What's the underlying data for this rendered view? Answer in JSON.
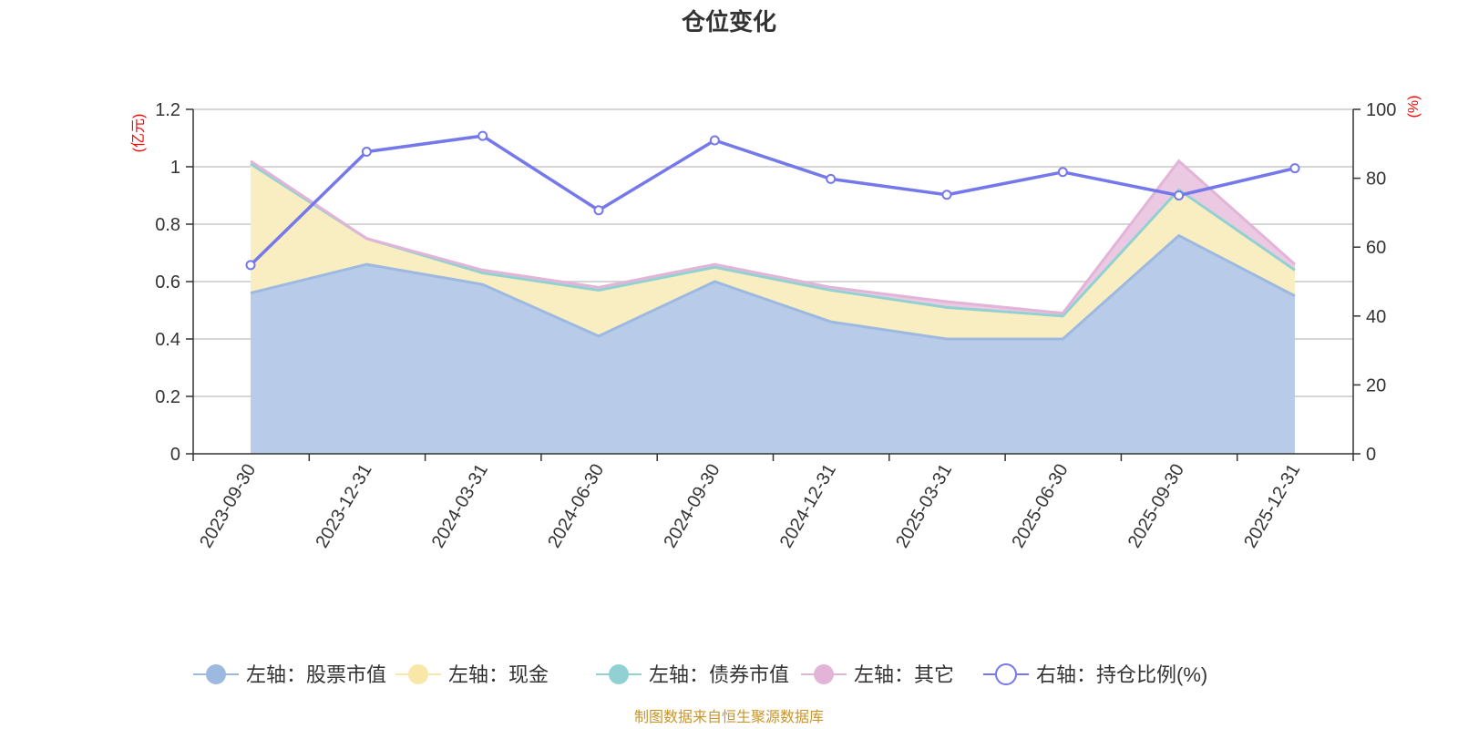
{
  "chart_data": {
    "type": "area",
    "title": "仓位变化",
    "categories": [
      "2023-09-30",
      "2023-12-31",
      "2024-03-31",
      "2024-06-30",
      "2024-09-30",
      "2024-12-31",
      "2025-03-31",
      "2025-06-30",
      "2025-09-30",
      "2025-12-31"
    ],
    "left_axis": {
      "unit": "(亿元)",
      "ylim": [
        0,
        1.2
      ],
      "ticks": [
        "0",
        "0.2",
        "0.4",
        "0.6",
        "0.8",
        "1",
        "1.2"
      ],
      "tick_values": [
        0,
        0.2,
        0.4,
        0.6,
        0.8,
        1.0,
        1.2
      ]
    },
    "right_axis": {
      "unit": "(%)",
      "ylim": [
        0,
        100
      ],
      "ticks": [
        "0",
        "20",
        "40",
        "60",
        "80",
        "100"
      ],
      "tick_values": [
        0,
        20,
        40,
        60,
        80,
        100
      ]
    },
    "series": [
      {
        "name": "左轴：股票市值",
        "axis": "left",
        "kind": "stacked-area",
        "color": "#9db9e0",
        "fill": "#b8cce9",
        "values": [
          0.56,
          0.66,
          0.59,
          0.41,
          0.6,
          0.46,
          0.4,
          0.4,
          0.76,
          0.55
        ]
      },
      {
        "name": "左轴：现金",
        "axis": "left",
        "kind": "stacked-area",
        "color": "#f8e7a6",
        "fill": "#f9edc2",
        "values": [
          0.45,
          0.09,
          0.04,
          0.16,
          0.05,
          0.11,
          0.11,
          0.08,
          0.16,
          0.09
        ]
      },
      {
        "name": "左轴：债券市值",
        "axis": "left",
        "kind": "stacked-area",
        "color": "#91d1d3",
        "fill": "#b6e2e3",
        "values": [
          0,
          0,
          0,
          0,
          0,
          0,
          0,
          0,
          0,
          0
        ]
      },
      {
        "name": "左轴：其它",
        "axis": "left",
        "kind": "stacked-area",
        "color": "#e2b4d8",
        "fill": "#ebc9e3",
        "values": [
          0.01,
          0.0,
          0.01,
          0.01,
          0.01,
          0.01,
          0.02,
          0.01,
          0.1,
          0.02
        ]
      },
      {
        "name": "右轴：持仓比例(%)",
        "axis": "right",
        "kind": "line",
        "color": "#7478ea",
        "values": [
          54.8,
          87.7,
          92.3,
          70.7,
          91.0,
          79.8,
          75.2,
          81.8,
          75.0,
          82.9
        ]
      }
    ],
    "legend_position": "bottom",
    "grid": true,
    "source": "制图数据来自恒生聚源数据库"
  }
}
